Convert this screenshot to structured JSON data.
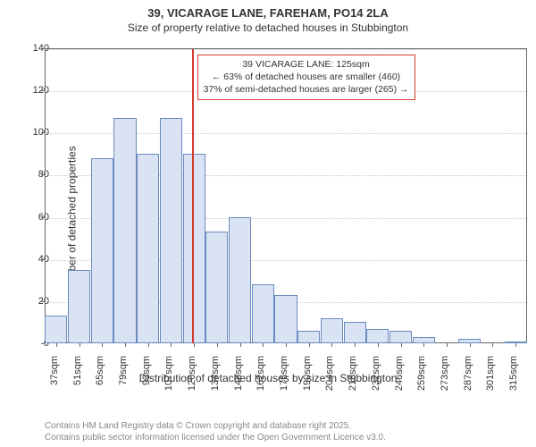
{
  "title": "39, VICARAGE LANE, FAREHAM, PO14 2LA",
  "subtitle": "Size of property relative to detached houses in Stubbington",
  "y_axis": {
    "label": "Number of detached properties",
    "min": 0,
    "max": 140,
    "ticks": [
      0,
      20,
      40,
      60,
      80,
      100,
      120,
      140
    ]
  },
  "x_axis": {
    "label": "Distribution of detached houses by size in Stubbington",
    "categories": [
      "37sqm",
      "51sqm",
      "65sqm",
      "79sqm",
      "93sqm",
      "107sqm",
      "120sqm",
      "134sqm",
      "148sqm",
      "162sqm",
      "176sqm",
      "190sqm",
      "204sqm",
      "218sqm",
      "232sqm",
      "246sqm",
      "259sqm",
      "273sqm",
      "287sqm",
      "301sqm",
      "315sqm"
    ]
  },
  "series": {
    "values": [
      13,
      35,
      88,
      107,
      90,
      107,
      90,
      53,
      60,
      28,
      23,
      6,
      12,
      10,
      7,
      6,
      3,
      0,
      2,
      0,
      1
    ],
    "bar_fill": "#d9e3f3",
    "bar_border": "#6a8bbf"
  },
  "marker": {
    "position_index": 6.4,
    "color": "#d63a2f",
    "box": {
      "line1": "39 VICARAGE LANE: 125sqm",
      "line2": "← 63% of detached houses are smaller (460)",
      "line3": "37% of semi-detached houses are larger (265) →",
      "border_color": "#d63a2f"
    }
  },
  "style": {
    "grid_color": "#c9c9c9",
    "axis_color": "#666666",
    "background": "#ffffff",
    "title_fontsize": 13,
    "subtitle_fontsize": 12,
    "label_fontsize": 12,
    "tick_fontsize": 11
  },
  "footer": {
    "line1": "Contains HM Land Registry data © Crown copyright and database right 2025.",
    "line2": "Contains public sector information licensed under the Open Government Licence v3.0."
  }
}
